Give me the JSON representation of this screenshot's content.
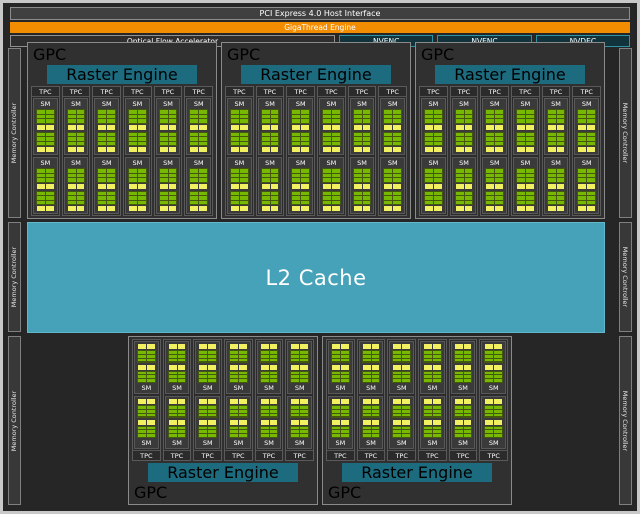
{
  "title_bars": {
    "pci": "PCI Express 4.0 Host Interface",
    "gigathread": "GigaThread Engine"
  },
  "media_engines": {
    "ofa": "Optical Flow Accelerator",
    "items": [
      "NVENC",
      "NVENC",
      "NVDEC"
    ]
  },
  "labels": {
    "gpc": "GPC",
    "raster_engine": "Raster Engine",
    "tpc": "TPC",
    "sm": "SM",
    "l2_cache": "L2 Cache",
    "memory_controller": "Memory Controller"
  },
  "structure": {
    "top_gpcs": 3,
    "bottom_gpcs": 2,
    "tpcs_per_gpc": 6,
    "sms_per_tpc": 2,
    "blocks_per_sm": 2,
    "green_cells_per_block": {
      "cols": 2,
      "rows": 3
    },
    "memory_controllers_per_side": 3
  },
  "colors": {
    "nvidia_green": "#76b900",
    "yellow": "#f0f060",
    "orange": "#f28c00",
    "raster_teal": "#1d6b7e",
    "l2_teal": "#45a2b8",
    "codec_teal": "#2f93a8"
  }
}
